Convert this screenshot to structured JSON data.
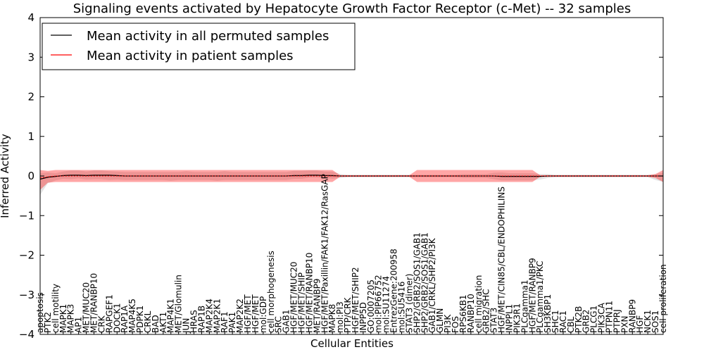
{
  "chart_data": {
    "type": "line",
    "title": "Signaling events activated by Hepatocyte Growth Factor Receptor (c-Met) -- 32 samples",
    "xlabel": "Cellular Entities",
    "ylabel": "Inferred Activity",
    "ylim": [
      -4,
      4
    ],
    "yticks": [
      "4",
      "3",
      "2",
      "1",
      "0",
      "−1",
      "−2",
      "−3",
      "−4"
    ],
    "grid": false,
    "legend_position": "top-left",
    "legend": [
      {
        "label": "Mean activity in all permuted samples",
        "color": "#000000"
      },
      {
        "label": "Mean activity in patient samples",
        "color": "#ff0000"
      }
    ],
    "categories": [
      "apoptosis",
      "PTK2",
      "cell motility",
      "MAPK1",
      "MAPK3",
      "AP1",
      "MET/MUC20",
      "MET/RANBP10",
      "CRK",
      "RAPGEF1",
      "DOCK1",
      "RAP1A",
      "MAP4K5",
      "PDPK1",
      "CRKL",
      "BAD",
      "AKT1",
      "MAP4K1",
      "MET/Glomulin",
      "JUN",
      "HRAS",
      "RAP1B",
      "MAP2K4",
      "MAP2K1",
      "RAF1",
      "PAK1",
      "MAP2K2",
      "HGF/MET",
      "HGF/MET",
      "mol:GDP",
      "cell morphogenesis",
      "SRC",
      "GAB1",
      "HGF/MET/MUC20",
      "HGF/MET/SHIP",
      "HGF/MET/RANBP10",
      "MET/RANBP9",
      "HGF/MET/Paxillin/FAK1/FAK12/RasGAP",
      "MAPK8",
      "mol:PI3",
      "PTP/CRK",
      "HGF/MET/SHIP2",
      "INPP5D",
      "GO:0007205",
      "mol:PIP66752",
      "mol:SU11274",
      "EntrezGene:200958",
      "mol:SU5416",
      "STAT3 (dimer)",
      "SHP2/GRB2/SOS1/GAB1",
      "SHP2/GRB2/SOS1/GAB1",
      "GAB1/CRKL/SHP2/PI3K",
      "GLMN",
      "PI3K",
      "FOS",
      "RPS6KB1",
      "RANBP10",
      "cell migration",
      "GRB2/SHC",
      "STAT3",
      "HGF/MET/CIN85/CBL/ENDOPHILINS",
      "INPPL1",
      "PIK3R1",
      "PLCgamma1",
      "HGF/MET/RANBP9",
      "PLCgamma1/PKC",
      "SH3KBP1",
      "SHC1",
      "RAC1",
      "CBL",
      "PTK2B",
      "GRB2",
      "PLCG1",
      "PIK3CA",
      "PTPN11",
      "PTPRJ",
      "PXN",
      "RANBP9",
      "HGF",
      "NCK1",
      "SOS1",
      "cell proliferation"
    ],
    "series": [
      {
        "name": "Mean activity in all permuted samples",
        "values": [
          -0.08,
          -0.03,
          -0.01,
          0.01,
          0.02,
          0.02,
          0.01,
          0.02,
          0.02,
          0.02,
          0.01,
          0,
          0,
          0,
          0,
          0,
          0,
          0,
          0,
          0,
          0,
          0,
          0,
          0,
          0,
          0,
          0,
          0,
          0,
          0,
          0,
          0,
          0,
          0.01,
          0.01,
          0.02,
          0.02,
          0.01,
          0.01,
          0,
          0,
          0,
          0,
          0,
          0,
          0,
          0,
          0,
          0,
          0,
          0,
          0,
          0,
          0,
          0,
          0,
          0,
          0,
          0,
          0,
          -0.01,
          -0.01,
          -0.01,
          -0.01,
          -0.01,
          -0.01,
          0,
          0,
          0,
          0,
          0,
          0,
          0,
          0,
          0,
          0,
          0,
          0,
          0,
          0,
          0,
          0
        ],
        "lower": [
          -0.4,
          -0.15,
          -0.1,
          -0.08,
          -0.1,
          -0.08,
          -0.1,
          -0.1,
          -0.1,
          -0.12,
          -0.1,
          -0.1,
          -0.1,
          -0.1,
          -0.1,
          -0.1,
          -0.1,
          -0.12,
          -0.1,
          -0.1,
          -0.1,
          -0.1,
          -0.1,
          -0.12,
          -0.1,
          -0.1,
          -0.1,
          -0.1,
          -0.1,
          -0.1,
          -0.1,
          -0.1,
          -0.1,
          -0.08,
          -0.08,
          -0.06,
          -0.06,
          -0.06,
          -0.08,
          -0.05,
          -0.03,
          -0.03,
          -0.03,
          -0.03,
          -0.03,
          -0.03,
          -0.03,
          -0.03,
          -0.03,
          -0.03,
          -0.03,
          -0.03,
          -0.03,
          -0.03,
          -0.03,
          -0.05,
          -0.05,
          -0.05,
          -0.05,
          -0.08,
          -0.1,
          -0.1,
          -0.1,
          -0.1,
          -0.1,
          -0.08,
          -0.05,
          -0.03,
          -0.03,
          -0.03,
          -0.03,
          -0.03,
          -0.03,
          -0.03,
          -0.03,
          -0.03,
          -0.03,
          -0.03,
          -0.03,
          -0.03,
          -0.1,
          -0.15
        ],
        "upper": [
          0.15,
          0.12,
          0.08,
          0.1,
          0.12,
          0.12,
          0.1,
          0.12,
          0.12,
          0.1,
          0.1,
          0.1,
          0.1,
          0.1,
          0.1,
          0.1,
          0.1,
          0.1,
          0.1,
          0.12,
          0.1,
          0.1,
          0.1,
          0.1,
          0.12,
          0.1,
          0.1,
          0.1,
          0.1,
          0.1,
          0.1,
          0.1,
          0.1,
          0.12,
          0.12,
          0.12,
          0.12,
          0.1,
          0.1,
          0.05,
          0.03,
          0.03,
          0.03,
          0.03,
          0.03,
          0.03,
          0.03,
          0.03,
          0.03,
          0.03,
          0.03,
          0.03,
          0.03,
          0.03,
          0.03,
          0.05,
          0.05,
          0.05,
          0.05,
          0.08,
          0.1,
          0.08,
          0.08,
          0.08,
          0.08,
          0.06,
          0.05,
          0.03,
          0.03,
          0.03,
          0.03,
          0.03,
          0.03,
          0.03,
          0.03,
          0.03,
          0.03,
          0.03,
          0.03,
          0.03,
          0.05,
          0.08
        ]
      },
      {
        "name": "Mean activity in patient samples",
        "values": [
          -0.05,
          -0.02,
          0,
          0,
          0,
          0,
          0,
          0,
          0,
          0,
          0,
          0,
          0,
          0,
          0,
          0,
          0,
          0,
          0,
          0,
          0,
          0,
          0,
          0,
          0,
          0,
          0,
          0,
          0,
          0,
          0,
          0,
          0,
          0,
          0,
          0,
          0,
          0,
          0,
          0,
          0,
          0,
          0,
          0,
          0,
          0,
          0,
          0,
          0,
          0,
          0,
          0,
          0,
          0,
          0,
          0,
          0,
          0,
          0,
          0,
          0,
          0,
          0,
          0,
          0,
          0,
          0,
          0,
          0,
          0,
          0,
          0,
          0,
          0,
          0,
          0,
          0,
          0,
          0,
          0,
          0,
          0
        ],
        "lower": [
          -0.3,
          -0.15,
          -0.15,
          -0.15,
          -0.15,
          -0.15,
          -0.15,
          -0.15,
          -0.15,
          -0.15,
          -0.15,
          -0.15,
          -0.15,
          -0.15,
          -0.15,
          -0.15,
          -0.15,
          -0.15,
          -0.15,
          -0.15,
          -0.15,
          -0.15,
          -0.15,
          -0.15,
          -0.15,
          -0.15,
          -0.15,
          -0.15,
          -0.15,
          -0.15,
          -0.15,
          -0.15,
          -0.15,
          -0.15,
          -0.15,
          -0.15,
          -0.15,
          -0.15,
          -0.15,
          -0.02,
          -0.02,
          -0.02,
          -0.02,
          -0.02,
          -0.02,
          -0.02,
          -0.02,
          -0.02,
          -0.02,
          -0.15,
          -0.15,
          -0.15,
          -0.15,
          -0.15,
          -0.15,
          -0.15,
          -0.15,
          -0.15,
          -0.15,
          -0.15,
          -0.15,
          -0.15,
          -0.15,
          -0.15,
          -0.15,
          -0.02,
          -0.02,
          -0.02,
          -0.02,
          -0.02,
          -0.02,
          -0.02,
          -0.02,
          -0.02,
          -0.02,
          -0.02,
          -0.02,
          -0.02,
          -0.02,
          -0.02,
          -0.05,
          -0.15
        ],
        "upper": [
          0.2,
          0.15,
          0.15,
          0.15,
          0.15,
          0.15,
          0.15,
          0.15,
          0.15,
          0.15,
          0.15,
          0.15,
          0.15,
          0.15,
          0.15,
          0.15,
          0.15,
          0.15,
          0.15,
          0.15,
          0.15,
          0.15,
          0.15,
          0.15,
          0.15,
          0.15,
          0.15,
          0.15,
          0.15,
          0.15,
          0.15,
          0.15,
          0.15,
          0.15,
          0.15,
          0.15,
          0.15,
          0.15,
          0.15,
          0.02,
          0.02,
          0.02,
          0.02,
          0.02,
          0.02,
          0.02,
          0.02,
          0.02,
          0.02,
          0.15,
          0.15,
          0.15,
          0.15,
          0.15,
          0.15,
          0.15,
          0.15,
          0.15,
          0.15,
          0.15,
          0.15,
          0.15,
          0.15,
          0.15,
          0.15,
          0.02,
          0.02,
          0.02,
          0.02,
          0.02,
          0.02,
          0.02,
          0.02,
          0.02,
          0.02,
          0.02,
          0.02,
          0.02,
          0.02,
          0.02,
          0.05,
          0.15
        ]
      }
    ]
  }
}
